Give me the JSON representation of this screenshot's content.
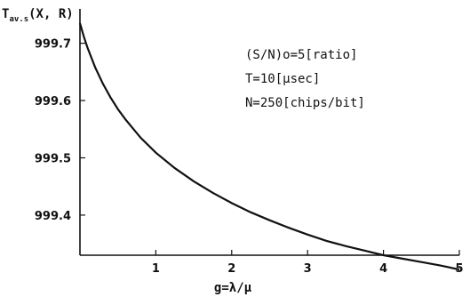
{
  "chart_data": {
    "type": "line",
    "title": "",
    "ylabel_main": "T",
    "ylabel_sub": "av.s",
    "ylabel_rest": "(X, R)",
    "xlabel": "g=λ/μ",
    "xlim": [
      0,
      5
    ],
    "ylim": [
      999.33,
      999.76
    ],
    "grid": false,
    "x_ticks": [
      1,
      2,
      3,
      4,
      5
    ],
    "y_ticks": [
      999.4,
      999.5,
      999.6,
      999.7
    ],
    "x_tick_labels": [
      "1",
      "2",
      "3",
      "4",
      "5"
    ],
    "y_tick_labels": [
      "999.4",
      "999.5",
      "999.6",
      "999.7"
    ],
    "annotations": [
      "(S/N)o=5[ratio]",
      "T=10[μsec]",
      "N=250[chips/bit]"
    ],
    "series": [
      {
        "x": [
          0.0,
          0.05,
          0.1,
          0.2,
          0.3,
          0.4,
          0.5,
          0.6,
          0.8,
          1.0,
          1.25,
          1.5,
          1.75,
          2.0,
          2.25,
          2.5,
          2.75,
          3.0,
          3.25,
          3.5,
          3.75,
          4.0,
          4.25,
          4.5,
          4.75,
          5.0
        ],
        "y": [
          999.735,
          999.712,
          999.692,
          999.658,
          999.63,
          999.606,
          999.585,
          999.567,
          999.535,
          999.509,
          999.482,
          999.459,
          999.439,
          999.421,
          999.405,
          999.391,
          999.378,
          999.366,
          999.355,
          999.346,
          999.338,
          999.33,
          999.324,
          999.318,
          999.312,
          999.305
        ]
      }
    ]
  }
}
